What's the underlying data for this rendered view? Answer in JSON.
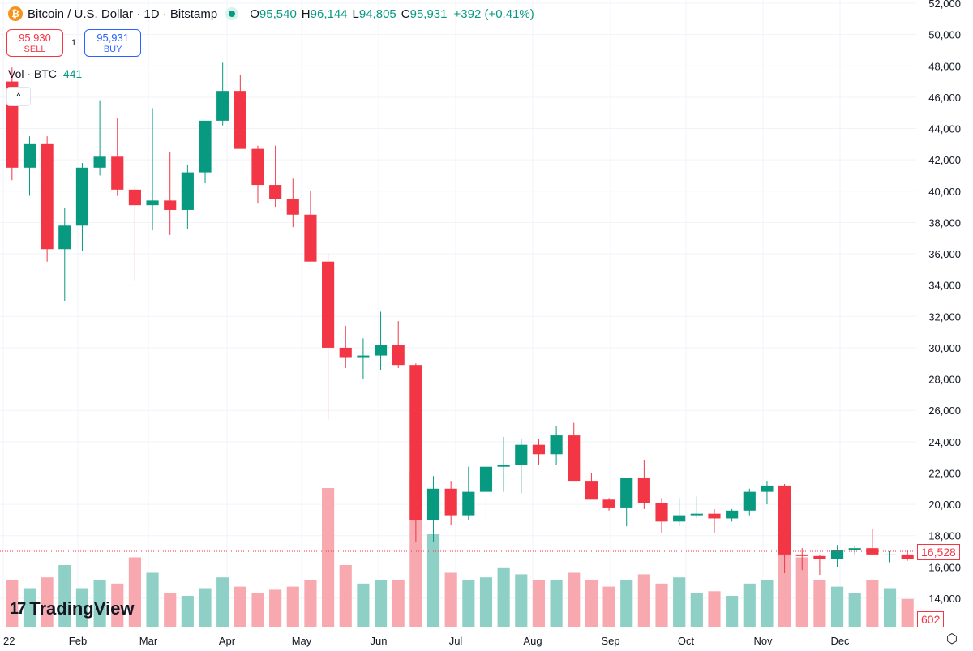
{
  "header": {
    "title": "Bitcoin / U.S. Dollar · 1D · Bitstamp",
    "o_label": "O",
    "open": "95,540",
    "h_label": "H",
    "high": "96,144",
    "l_label": "L",
    "low": "94,805",
    "c_label": "C",
    "close": "95,931",
    "change": "+392 (+0.41%)"
  },
  "trade": {
    "sell_price": "95,930",
    "sell_label": "SELL",
    "spread": "1",
    "buy_price": "95,931",
    "buy_label": "BUY"
  },
  "volume": {
    "label": "Vol · BTC",
    "value": "441",
    "last_tag": "602"
  },
  "price_tag": "16,528",
  "logo": "TradingView",
  "colors": {
    "up": "#089981",
    "down": "#f23645",
    "vol_up": "#8fd0c6",
    "vol_down": "#f7a9af"
  },
  "chart_data": {
    "type": "candlestick",
    "interval_note": "",
    "y_ticks": [
      "52,000",
      "50,000",
      "48,000",
      "46,000",
      "44,000",
      "42,000",
      "40,000",
      "38,000",
      "36,000",
      "34,000",
      "32,000",
      "30,000",
      "28,000",
      "26,000",
      "24,000",
      "22,000",
      "20,000",
      "18,000",
      "16,000",
      "14,000"
    ],
    "ylim": [
      14000,
      52000
    ],
    "x_ticks": [
      "22",
      "Feb",
      "Mar",
      "Apr",
      "May",
      "Jun",
      "Jul",
      "Aug",
      "Sep",
      "Oct",
      "Nov",
      "Dec"
    ],
    "grid": true,
    "candles_weekly_ohlc": [
      [
        47000,
        47900,
        40700,
        41500
      ],
      [
        41500,
        43500,
        39700,
        43000
      ],
      [
        43000,
        43500,
        35500,
        36300
      ],
      [
        36300,
        38900,
        33000,
        37800
      ],
      [
        37800,
        41800,
        36200,
        41500
      ],
      [
        41500,
        45800,
        41000,
        42200
      ],
      [
        42200,
        44700,
        39700,
        40100
      ],
      [
        40100,
        40300,
        34300,
        39100
      ],
      [
        39100,
        45300,
        37500,
        39400
      ],
      [
        39400,
        42500,
        37200,
        38800
      ],
      [
        38800,
        41700,
        37600,
        41200
      ],
      [
        41200,
        44200,
        40500,
        44500
      ],
      [
        44500,
        48200,
        44200,
        46400
      ],
      [
        46400,
        47400,
        42800,
        42700
      ],
      [
        42700,
        42900,
        39200,
        40400
      ],
      [
        40400,
        42900,
        39000,
        39500
      ],
      [
        39500,
        40800,
        37700,
        38500
      ],
      [
        38500,
        40000,
        35600,
        35500
      ],
      [
        35500,
        36000,
        25400,
        30000
      ],
      [
        30000,
        31400,
        28700,
        29400
      ],
      [
        29400,
        30600,
        28000,
        29500
      ],
      [
        29500,
        32300,
        28600,
        30200
      ],
      [
        30200,
        31700,
        28700,
        28900
      ],
      [
        28900,
        29000,
        17600,
        19000
      ],
      [
        19000,
        21800,
        17600,
        21000
      ],
      [
        21000,
        21500,
        18700,
        19300
      ],
      [
        19300,
        22400,
        19000,
        20800
      ],
      [
        20800,
        22000,
        19000,
        22400
      ],
      [
        22400,
        24300,
        20800,
        22500
      ],
      [
        22500,
        24200,
        20700,
        23800
      ],
      [
        23800,
        24200,
        22500,
        23200
      ],
      [
        23200,
        25000,
        22500,
        24400
      ],
      [
        24400,
        25200,
        23200,
        21500
      ],
      [
        21500,
        22000,
        20400,
        20300
      ],
      [
        20300,
        20400,
        19600,
        19800
      ],
      [
        19800,
        21200,
        18600,
        21700
      ],
      [
        21700,
        22800,
        19700,
        20100
      ],
      [
        20100,
        20400,
        18200,
        18900
      ],
      [
        18900,
        20400,
        18600,
        19300
      ],
      [
        19300,
        20500,
        19100,
        19400
      ],
      [
        19400,
        19700,
        18200,
        19100
      ],
      [
        19100,
        19700,
        18900,
        19600
      ],
      [
        19600,
        21000,
        19300,
        20800
      ],
      [
        20800,
        21500,
        20000,
        21200
      ],
      [
        21200,
        21300,
        15600,
        16800
      ],
      [
        16800,
        17200,
        15800,
        16700
      ],
      [
        16700,
        16800,
        15500,
        16500
      ],
      [
        16500,
        17400,
        16000,
        17100
      ],
      [
        17100,
        17400,
        16800,
        17200
      ],
      [
        17200,
        18400,
        16900,
        16800
      ],
      [
        16800,
        17000,
        16300,
        16800
      ],
      [
        16800,
        17100,
        16400,
        16528
      ]
    ],
    "volumes_weekly": [
      3,
      2.5,
      3.2,
      4,
      2.5,
      3,
      2.8,
      4.5,
      3.5,
      2.2,
      2,
      2.5,
      3.2,
      2.6,
      2.2,
      2.4,
      2.6,
      3,
      9,
      4,
      2.8,
      3,
      3,
      10,
      6,
      3.5,
      3,
      3.2,
      3.8,
      3.4,
      3,
      3,
      3.5,
      3,
      2.6,
      3,
      3.4,
      2.8,
      3.2,
      2.2,
      2.3,
      2,
      2.8,
      3,
      8.5,
      4.5,
      3,
      2.6,
      2.2,
      3,
      2.5,
      1.8
    ]
  }
}
